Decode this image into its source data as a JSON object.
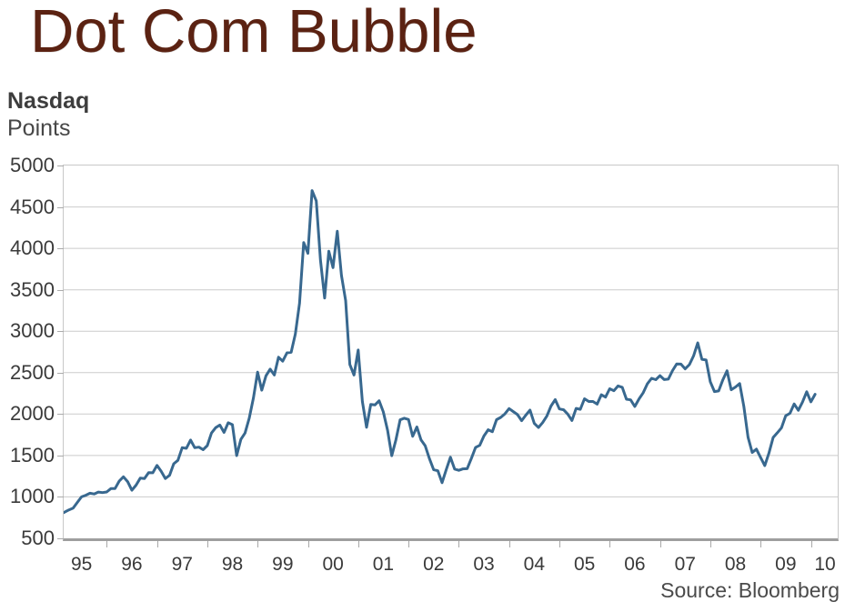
{
  "title": "Dot Com Bubble",
  "chart_header": {
    "name": "Nasdaq",
    "units": "Points"
  },
  "source": "Source: Bloomberg",
  "colors": {
    "title": "#5B2212",
    "line": "#38688F",
    "grid": "#CBCBCB",
    "axis": "#9E9E9E",
    "tick": "#A8A8A8",
    "label_text": "#3A3A3A"
  },
  "chart_data": {
    "type": "line",
    "title": "Nasdaq",
    "ylabel": "Points",
    "xlabel": "",
    "annotation": "Source: Bloomberg",
    "grid": "horizontal",
    "legend": "none",
    "ylim": [
      500,
      5000
    ],
    "y_ticks": [
      500,
      1000,
      1500,
      2000,
      2500,
      3000,
      3500,
      4000,
      4500,
      5000
    ],
    "x_tick_labels": [
      "95",
      "96",
      "97",
      "98",
      "99",
      "00",
      "01",
      "02",
      "03",
      "04",
      "05",
      "06",
      "07",
      "08",
      "09",
      "10"
    ],
    "x_start": "1995-01",
    "x_end": "2010-02",
    "cadence": "monthly",
    "series": [
      {
        "name": "Nasdaq Composite (points)",
        "values": [
          755,
          793,
          817,
          843,
          864,
          933,
          1001,
          1020,
          1044,
          1036,
          1059,
          1052,
          1060,
          1100,
          1101,
          1191,
          1243,
          1185,
          1081,
          1142,
          1227,
          1222,
          1293,
          1291,
          1380,
          1309,
          1222,
          1261,
          1400,
          1442,
          1594,
          1587,
          1686,
          1594,
          1601,
          1570,
          1619,
          1771,
          1836,
          1868,
          1779,
          1895,
          1872,
          1499,
          1694,
          1771,
          1950,
          2193,
          2506,
          2288,
          2461,
          2543,
          2471,
          2686,
          2638,
          2739,
          2746,
          2966,
          3336,
          4069,
          3940,
          4697,
          4573,
          3861,
          3401,
          3966,
          3767,
          4206,
          3673,
          3370,
          2598,
          2471,
          2773,
          2152,
          1840,
          2116,
          2110,
          2161,
          2027,
          1805,
          1498,
          1690,
          1930,
          1950,
          1934,
          1731,
          1845,
          1688,
          1616,
          1463,
          1328,
          1315,
          1172,
          1330,
          1479,
          1336,
          1321,
          1338,
          1341,
          1464,
          1596,
          1623,
          1735,
          1810,
          1787,
          1932,
          1960,
          2003,
          2066,
          2030,
          1994,
          1920,
          1987,
          2048,
          1887,
          1838,
          1897,
          1975,
          2097,
          2175,
          2062,
          2052,
          1999,
          1922,
          2068,
          2057,
          2185,
          2152,
          2152,
          2120,
          2233,
          2205,
          2306,
          2281,
          2340,
          2323,
          2179,
          2172,
          2091,
          2184,
          2258,
          2367,
          2432,
          2415,
          2464,
          2416,
          2422,
          2525,
          2605,
          2603,
          2546,
          2596,
          2702,
          2859,
          2661,
          2652,
          2390,
          2271,
          2279,
          2413,
          2523,
          2293,
          2326,
          2368,
          2092,
          1721,
          1536,
          1577,
          1476,
          1378,
          1529,
          1717,
          1774,
          1835,
          1979,
          2009,
          2122,
          2045,
          2145,
          2269,
          2147,
          2238
        ]
      }
    ]
  }
}
